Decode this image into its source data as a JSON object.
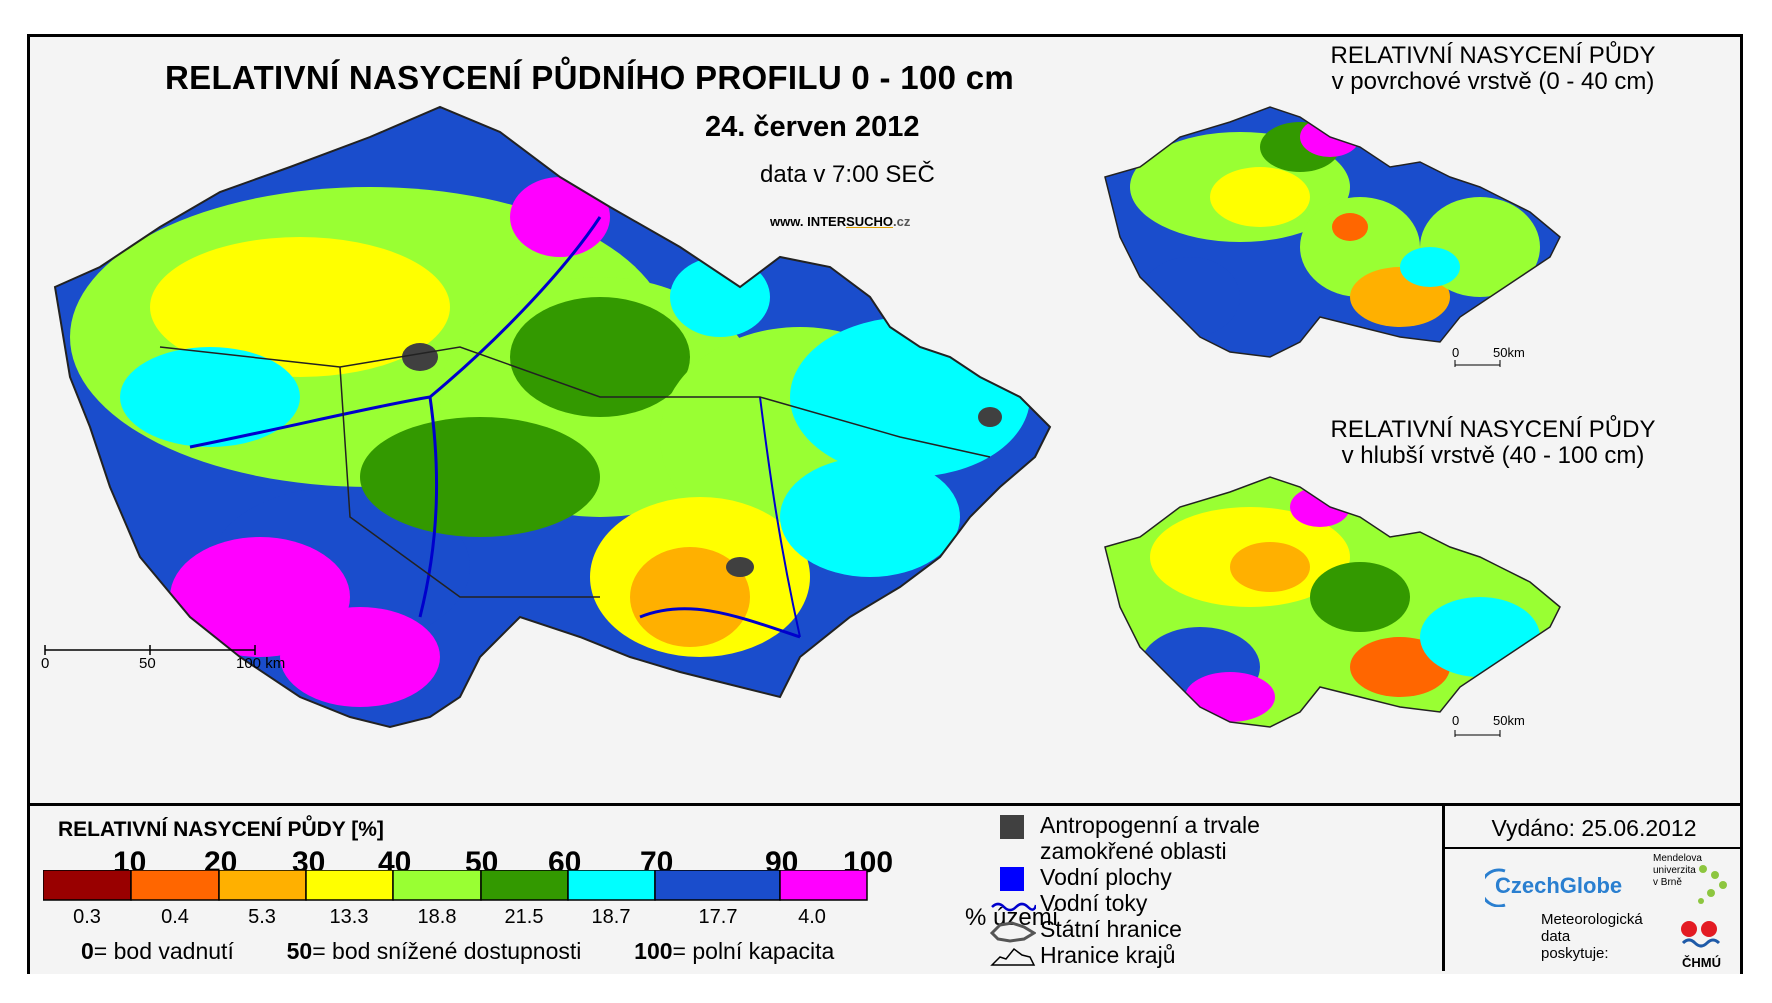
{
  "main": {
    "title": "RELATIVNÍ NASYCENÍ PŮDNÍHO PROFILU 0 - 100 cm",
    "date": "24. červen 2012",
    "time_note": "data v 7:00 SEČ",
    "site_prefix": "www. INTER",
    "site_highlight": "SUCHO",
    "site_suffix": ".cz",
    "scale": {
      "l0": "0",
      "l1": "50",
      "l2": "100 km"
    }
  },
  "surface_map": {
    "title_line1": "RELATIVNÍ NASYCENÍ PŮDY",
    "title_line2": "v povrchové vrstvě (0 - 40 cm)",
    "scale": {
      "l0": "0",
      "l1": "50km"
    }
  },
  "deep_map": {
    "title_line1": "RELATIVNÍ NASYCENÍ PŮDY",
    "title_line2": "v hlubší vrstvě (40 - 100 cm)",
    "scale": {
      "l0": "0",
      "l1": "50km"
    }
  },
  "legend": {
    "title": "RELATIVNÍ NASYCENÍ PŮDY [%]",
    "thresholds": [
      "10",
      "20",
      "30",
      "40",
      "50",
      "60",
      "70",
      "90",
      "100"
    ],
    "classes": [
      {
        "color": "#990000",
        "pct": "0.3"
      },
      {
        "color": "#ff6600",
        "pct": "0.4"
      },
      {
        "color": "#ffb000",
        "pct": "5.3"
      },
      {
        "color": "#ffff00",
        "pct": "13.3"
      },
      {
        "color": "#99ff33",
        "pct": "18.8"
      },
      {
        "color": "#339900",
        "pct": "21.5"
      },
      {
        "color": "#00ffff",
        "pct": "18.7"
      },
      {
        "color": "#1a4dcc",
        "pct": "17.7"
      },
      {
        "color": "#ff00ff",
        "pct": "4.0"
      }
    ],
    "pct_unit": "% území",
    "def0_num": "0",
    "def0_text": "= bod vadnutí",
    "def50_num": "50",
    "def50_text": "= bod snížené dostupnosti",
    "def100_num": "100",
    "def100_text": "= polní kapacita"
  },
  "side_legend": {
    "anthro_line1": "Antropogenní a trvale",
    "anthro_line2": "zamokřené oblasti",
    "water_bodies": "Vodní plochy",
    "streams": "Vodní toky",
    "state_border": "Státní hranice",
    "region_border": "Hranice krajů",
    "colors": {
      "anthro": "#404040",
      "water": "#0000ff",
      "stream": "#0000cc"
    }
  },
  "issued": {
    "text": "Vydáno: 25.06.2012",
    "czechglobe": "CzechGlobe",
    "mendel_l1": "Mendelova",
    "mendel_l2": "univerzita",
    "mendel_l3": "v Brně",
    "meteo_l1": "Meteorologická",
    "meteo_l2": "data",
    "meteo_l3": "poskytuje:",
    "chmu": "ČHMÚ"
  }
}
